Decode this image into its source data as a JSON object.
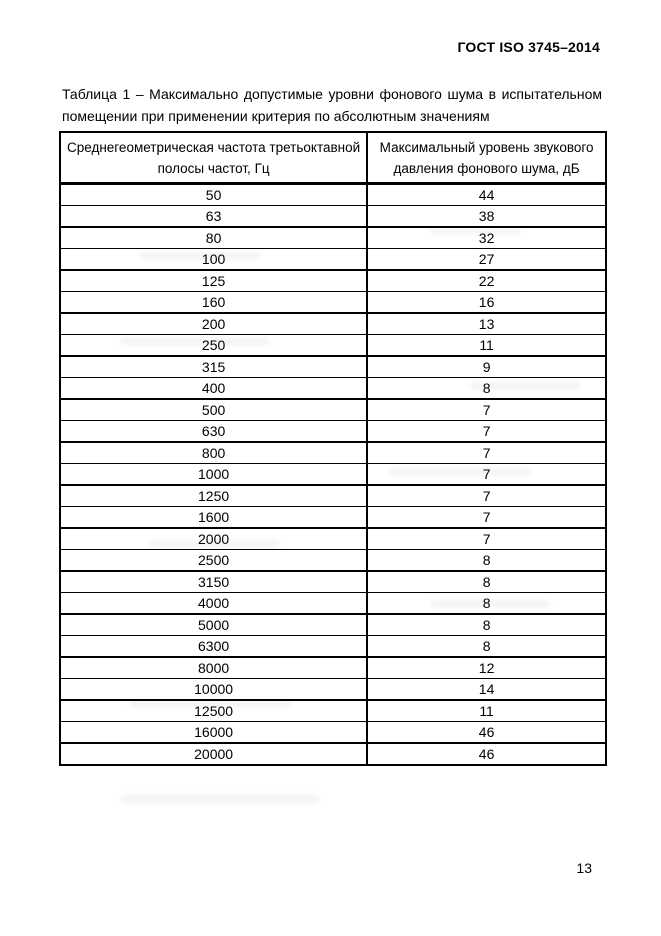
{
  "page": {
    "header": "ГОСТ ISO 3745–2014",
    "page_number": "13"
  },
  "caption": {
    "line1": "Таблица 1 – Максимально допустимые уровни фонового шума в испытательном",
    "line2": "помещении при применении критерия по абсолютным значениям"
  },
  "table": {
    "columns": [
      {
        "line1": "Среднегеометрическая частота третьоктавной",
        "line2": "полосы частот, Гц"
      },
      {
        "line1": "Максимальный уровень звукового",
        "line2": "давления фонового шума, дБ"
      }
    ],
    "rows": [
      {
        "freq": "50",
        "level": "44"
      },
      {
        "freq": "63",
        "level": "38"
      },
      {
        "freq": "80",
        "level": "32"
      },
      {
        "freq": "100",
        "level": "27"
      },
      {
        "freq": "125",
        "level": "22"
      },
      {
        "freq": "160",
        "level": "16"
      },
      {
        "freq": "200",
        "level": "13"
      },
      {
        "freq": "250",
        "level": "11"
      },
      {
        "freq": "315",
        "level": "9"
      },
      {
        "freq": "400",
        "level": "8"
      },
      {
        "freq": "500",
        "level": "7"
      },
      {
        "freq": "630",
        "level": "7"
      },
      {
        "freq": "800",
        "level": "7"
      },
      {
        "freq": "1000",
        "level": "7"
      },
      {
        "freq": "1250",
        "level": "7"
      },
      {
        "freq": "1600",
        "level": "7"
      },
      {
        "freq": "2000",
        "level": "7"
      },
      {
        "freq": "2500",
        "level": "8"
      },
      {
        "freq": "3150",
        "level": "8"
      },
      {
        "freq": "4000",
        "level": "8"
      },
      {
        "freq": "5000",
        "level": "8"
      },
      {
        "freq": "6300",
        "level": "8"
      },
      {
        "freq": "8000",
        "level": "12"
      },
      {
        "freq": "10000",
        "level": "14"
      },
      {
        "freq": "12500",
        "level": "11"
      },
      {
        "freq": "16000",
        "level": "46"
      },
      {
        "freq": "20000",
        "level": "46"
      }
    ]
  }
}
